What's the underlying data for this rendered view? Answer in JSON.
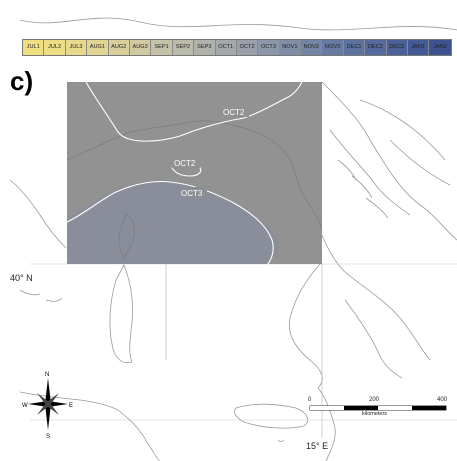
{
  "panel": {
    "letter": "c)"
  },
  "legend": {
    "cells": [
      {
        "label": "JUL1",
        "color": "#f0df7e"
      },
      {
        "label": "JUL2",
        "color": "#eddd84"
      },
      {
        "label": "JUL3",
        "color": "#e8da8c"
      },
      {
        "label": "AUG1",
        "color": "#e1d594"
      },
      {
        "label": "AUG2",
        "color": "#d9cf9b"
      },
      {
        "label": "AUG3",
        "color": "#d1c9a2"
      },
      {
        "label": "SEP1",
        "color": "#c6c2a9"
      },
      {
        "label": "SEP2",
        "color": "#bbbbab"
      },
      {
        "label": "SEP3",
        "color": "#b0b3ac"
      },
      {
        "label": "OCT1",
        "color": "#a4aaab"
      },
      {
        "label": "OCT2",
        "color": "#98a1aa"
      },
      {
        "label": "OCT3",
        "color": "#8b97a8"
      },
      {
        "label": "NOV1",
        "color": "#7f8da6"
      },
      {
        "label": "NOV2",
        "color": "#7484a4"
      },
      {
        "label": "NOV3",
        "color": "#697aa2"
      },
      {
        "label": "DEC1",
        "color": "#5e72a0"
      },
      {
        "label": "DEC2",
        "color": "#55699d"
      },
      {
        "label": "DEC3",
        "color": "#4c6199"
      },
      {
        "label": "JAN1",
        "color": "#445a95"
      },
      {
        "label": "JAN2",
        "color": "#3d5390"
      }
    ]
  },
  "isolines": {
    "north": "OCT2",
    "center": "OCT2",
    "south": "OCT3"
  },
  "raster": {
    "upper_color": "#929292",
    "lower_color": "#8a8e9a"
  },
  "graticule": {
    "lat": "40° N",
    "lon": "15° E"
  },
  "scale_bar": {
    "ticks": [
      "0",
      "200",
      "400"
    ],
    "unit": "kilometers"
  },
  "compass": {
    "n": "N",
    "s": "S",
    "e": "E",
    "w": "W"
  }
}
